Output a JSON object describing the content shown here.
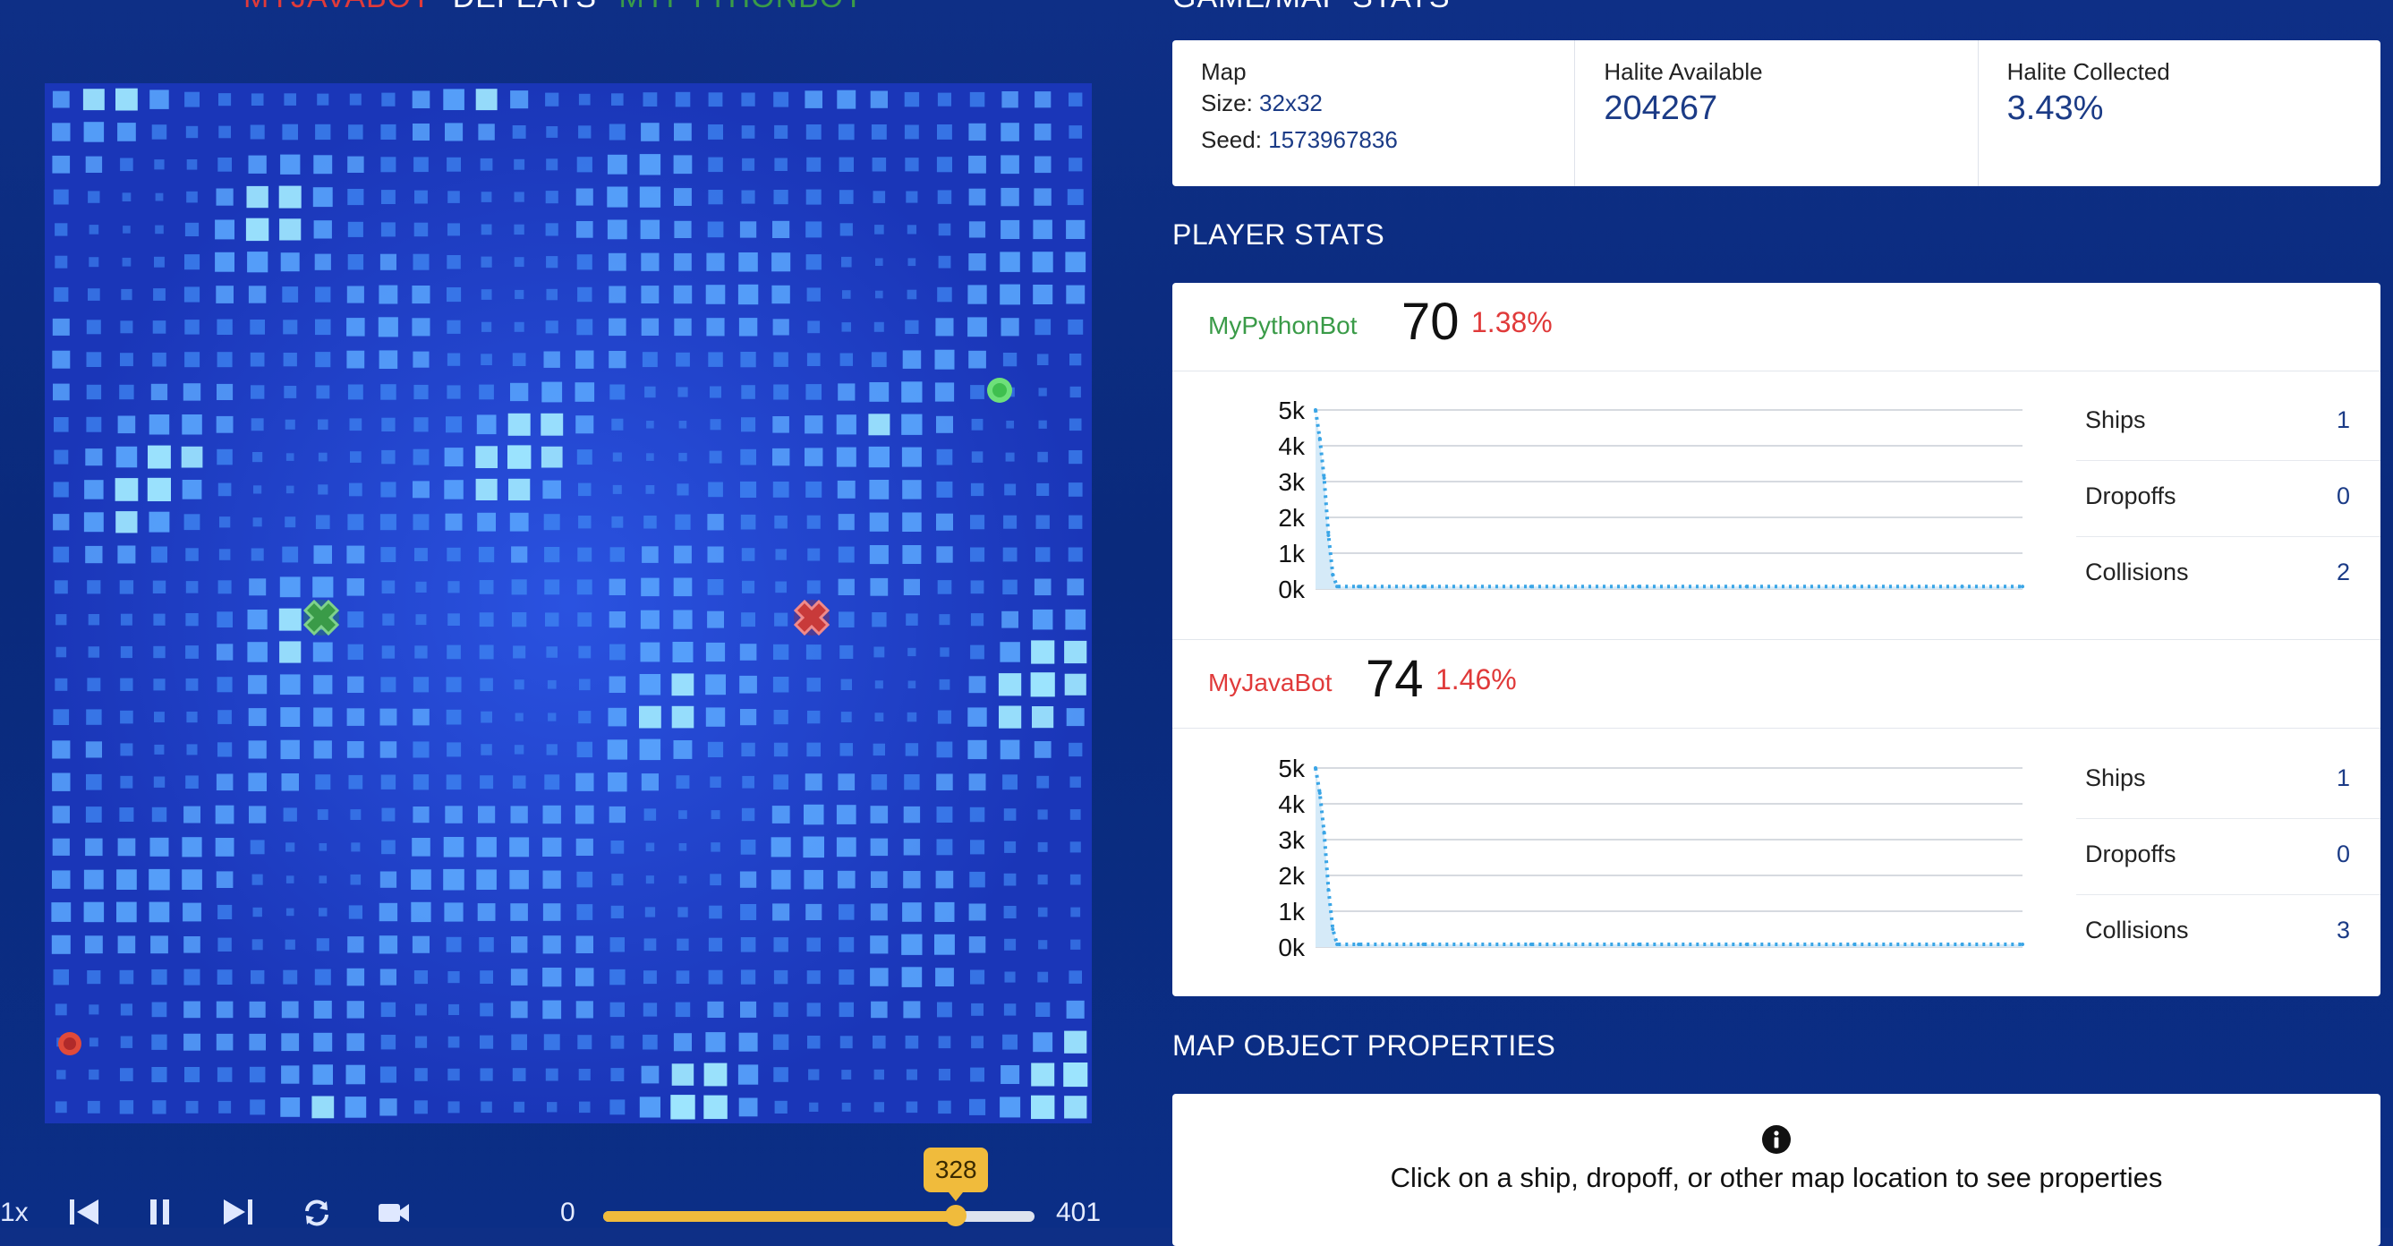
{
  "header": {
    "matchup_left": "MYJAVABOT",
    "matchup_mid": "DEFEATS",
    "matchup_right": "MYPYTHONBOT",
    "stats_title": "GAME/MAP STATS"
  },
  "colors": {
    "accent_gold": "#f0bb3c",
    "player_green": "#3a9b48",
    "player_red": "#e03a3a",
    "value_blue": "#1b3b86"
  },
  "playback": {
    "speed_label": "1x",
    "turn_min": "0",
    "turn_max": "401",
    "current_turn": "328",
    "current_turn_value": 328,
    "max_turn_value": 401,
    "icons": [
      "skip-back-icon",
      "pause-icon",
      "skip-forward-icon",
      "repeat-icon",
      "camera-icon"
    ]
  },
  "map_stats": {
    "map_label": "Map",
    "size_label": "Size:",
    "size_value": "32x32",
    "seed_label": "Seed:",
    "seed_value": "1573967836",
    "halite_available_label": "Halite Available",
    "halite_available_value": "204267",
    "halite_collected_label": "Halite Collected",
    "halite_collected_value": "3.43%"
  },
  "player_stats": {
    "title": "PLAYER STATS",
    "players": [
      {
        "name": "MyPythonBot",
        "color": "#3a9b48",
        "score": "70",
        "percent": "1.38%",
        "ships_label": "Ships",
        "ships": "1",
        "dropoffs_label": "Dropoffs",
        "dropoffs": "0",
        "collisions_label": "Collisions",
        "collisions": "2"
      },
      {
        "name": "MyJavaBot",
        "color": "#e03a3a",
        "score": "74",
        "percent": "1.46%",
        "ships_label": "Ships",
        "ships": "1",
        "dropoffs_label": "Dropoffs",
        "dropoffs": "0",
        "collisions_label": "Collisions",
        "collisions": "3"
      }
    ]
  },
  "chart_data": [
    {
      "type": "area",
      "series_name": "",
      "ylim": [
        0,
        5000
      ],
      "yticks": [
        "0k",
        "1k",
        "2k",
        "3k",
        "4k",
        "5k"
      ],
      "x": [
        0,
        2,
        4,
        6,
        8,
        10,
        20,
        50,
        100,
        150,
        200,
        250,
        300,
        328
      ],
      "values": [
        5000,
        4200,
        3100,
        1500,
        400,
        70,
        70,
        70,
        70,
        70,
        70,
        70,
        70,
        70
      ],
      "xlim": [
        0,
        328
      ]
    },
    {
      "type": "area",
      "series_name": "",
      "ylim": [
        0,
        5000
      ],
      "yticks": [
        "0k",
        "1k",
        "2k",
        "3k",
        "4k",
        "5k"
      ],
      "x": [
        0,
        2,
        4,
        6,
        8,
        10,
        20,
        50,
        100,
        150,
        200,
        250,
        300,
        328
      ],
      "values": [
        5000,
        4300,
        3200,
        1600,
        500,
        74,
        74,
        74,
        74,
        74,
        74,
        74,
        74,
        74
      ],
      "xlim": [
        0,
        328
      ]
    }
  ],
  "map_objects": {
    "title": "MAP OBJECT PROPERTIES",
    "message": "Click on a ship, dropoff, or other map location to see properties"
  }
}
